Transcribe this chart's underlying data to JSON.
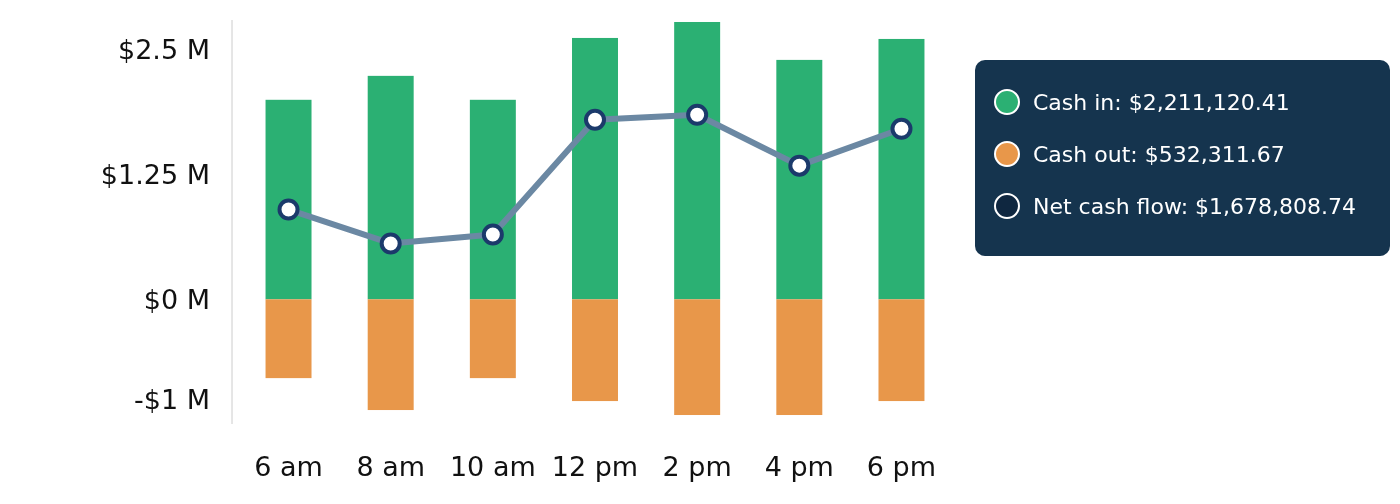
{
  "chart_data": {
    "type": "bar",
    "categories": [
      "6 am",
      "8 am",
      "10 am",
      "12 pm",
      "2 pm",
      "4 pm",
      "6 pm"
    ],
    "series": [
      {
        "color": "#2bb073",
        "values": [
          2.0,
          2.24,
          2.0,
          2.62,
          2.78,
          2.4,
          2.61
        ]
      },
      {
        "color": "#e8974a",
        "values": [
          -0.79,
          -1.11,
          -0.79,
          -1.02,
          -1.16,
          -1.16,
          -1.02
        ]
      },
      {
        "type": "line",
        "color": "#6b88a3",
        "values": [
          0.9,
          0.56,
          0.65,
          1.8,
          1.85,
          1.34,
          1.71
        ]
      }
    ],
    "stacked": true,
    "marker": "circle",
    "grid": false,
    "ylim": [
      -1.25,
      2.8
    ],
    "yticks": [
      {
        "value": -1,
        "label": "-$1 M"
      },
      {
        "value": 0,
        "label": "$0 M"
      },
      {
        "value": 1.25,
        "label": "$1.25 M"
      },
      {
        "value": 2.5,
        "label": "$2.5 M"
      }
    ],
    "annotations": [
      "Cash in: $2,211,120.41",
      "Cash out: $532,311.67",
      "Net cash flow: $1,678,808.74"
    ]
  }
}
